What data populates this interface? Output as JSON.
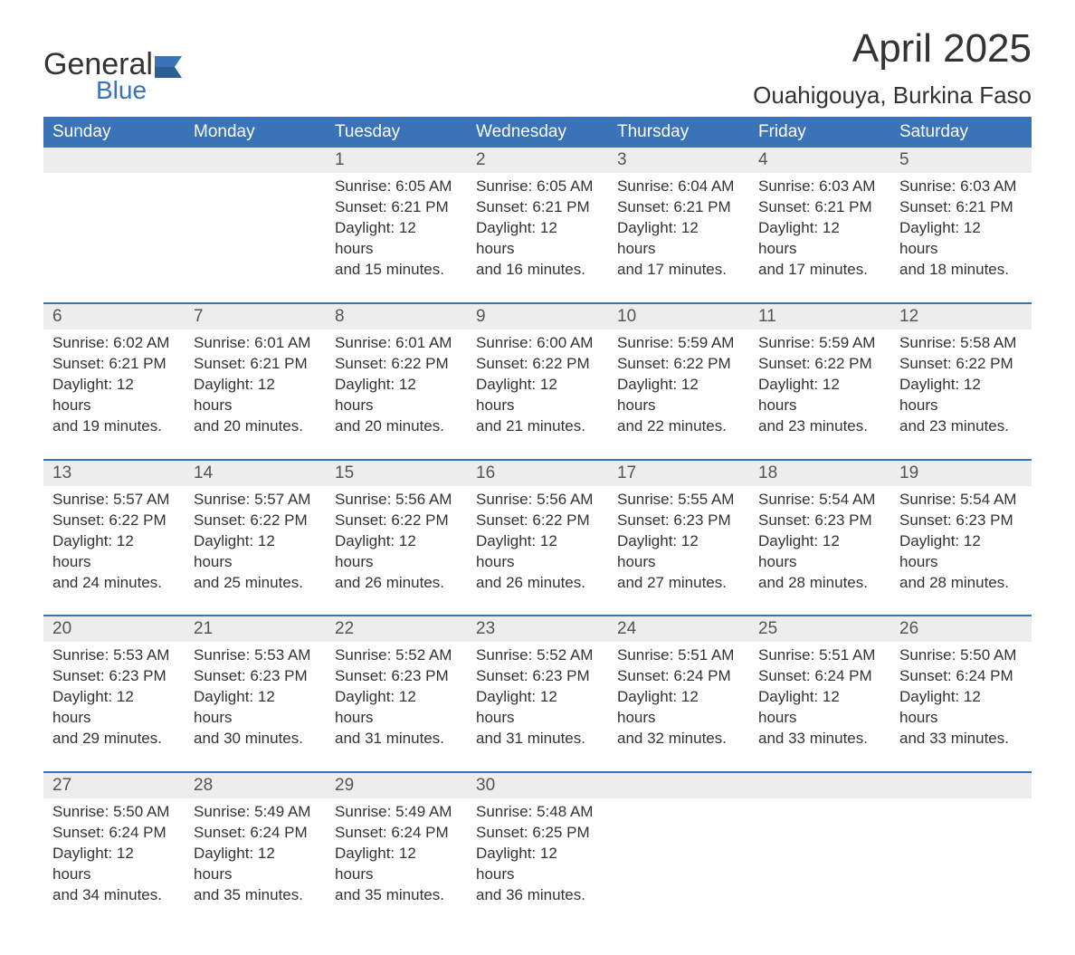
{
  "brand": {
    "text1": "General",
    "text2": "Blue",
    "accent": "#3b73b9"
  },
  "title": "April 2025",
  "location": "Ouahigouya, Burkina Faso",
  "colors": {
    "header_bg": "#3b73b9",
    "header_text": "#ffffff",
    "daynum_bg": "#ededed",
    "row_divider": "#3b73b9",
    "body_text": "#333333",
    "page_bg": "#ffffff"
  },
  "weekdays": [
    "Sunday",
    "Monday",
    "Tuesday",
    "Wednesday",
    "Thursday",
    "Friday",
    "Saturday"
  ],
  "weeks": [
    [
      null,
      null,
      {
        "d": "1",
        "sr": "6:05 AM",
        "ss": "6:21 PM",
        "dlh": "12",
        "dlm": "15"
      },
      {
        "d": "2",
        "sr": "6:05 AM",
        "ss": "6:21 PM",
        "dlh": "12",
        "dlm": "16"
      },
      {
        "d": "3",
        "sr": "6:04 AM",
        "ss": "6:21 PM",
        "dlh": "12",
        "dlm": "17"
      },
      {
        "d": "4",
        "sr": "6:03 AM",
        "ss": "6:21 PM",
        "dlh": "12",
        "dlm": "17"
      },
      {
        "d": "5",
        "sr": "6:03 AM",
        "ss": "6:21 PM",
        "dlh": "12",
        "dlm": "18"
      }
    ],
    [
      {
        "d": "6",
        "sr": "6:02 AM",
        "ss": "6:21 PM",
        "dlh": "12",
        "dlm": "19"
      },
      {
        "d": "7",
        "sr": "6:01 AM",
        "ss": "6:21 PM",
        "dlh": "12",
        "dlm": "20"
      },
      {
        "d": "8",
        "sr": "6:01 AM",
        "ss": "6:22 PM",
        "dlh": "12",
        "dlm": "20"
      },
      {
        "d": "9",
        "sr": "6:00 AM",
        "ss": "6:22 PM",
        "dlh": "12",
        "dlm": "21"
      },
      {
        "d": "10",
        "sr": "5:59 AM",
        "ss": "6:22 PM",
        "dlh": "12",
        "dlm": "22"
      },
      {
        "d": "11",
        "sr": "5:59 AM",
        "ss": "6:22 PM",
        "dlh": "12",
        "dlm": "23"
      },
      {
        "d": "12",
        "sr": "5:58 AM",
        "ss": "6:22 PM",
        "dlh": "12",
        "dlm": "23"
      }
    ],
    [
      {
        "d": "13",
        "sr": "5:57 AM",
        "ss": "6:22 PM",
        "dlh": "12",
        "dlm": "24"
      },
      {
        "d": "14",
        "sr": "5:57 AM",
        "ss": "6:22 PM",
        "dlh": "12",
        "dlm": "25"
      },
      {
        "d": "15",
        "sr": "5:56 AM",
        "ss": "6:22 PM",
        "dlh": "12",
        "dlm": "26"
      },
      {
        "d": "16",
        "sr": "5:56 AM",
        "ss": "6:22 PM",
        "dlh": "12",
        "dlm": "26"
      },
      {
        "d": "17",
        "sr": "5:55 AM",
        "ss": "6:23 PM",
        "dlh": "12",
        "dlm": "27"
      },
      {
        "d": "18",
        "sr": "5:54 AM",
        "ss": "6:23 PM",
        "dlh": "12",
        "dlm": "28"
      },
      {
        "d": "19",
        "sr": "5:54 AM",
        "ss": "6:23 PM",
        "dlh": "12",
        "dlm": "28"
      }
    ],
    [
      {
        "d": "20",
        "sr": "5:53 AM",
        "ss": "6:23 PM",
        "dlh": "12",
        "dlm": "29"
      },
      {
        "d": "21",
        "sr": "5:53 AM",
        "ss": "6:23 PM",
        "dlh": "12",
        "dlm": "30"
      },
      {
        "d": "22",
        "sr": "5:52 AM",
        "ss": "6:23 PM",
        "dlh": "12",
        "dlm": "31"
      },
      {
        "d": "23",
        "sr": "5:52 AM",
        "ss": "6:23 PM",
        "dlh": "12",
        "dlm": "31"
      },
      {
        "d": "24",
        "sr": "5:51 AM",
        "ss": "6:24 PM",
        "dlh": "12",
        "dlm": "32"
      },
      {
        "d": "25",
        "sr": "5:51 AM",
        "ss": "6:24 PM",
        "dlh": "12",
        "dlm": "33"
      },
      {
        "d": "26",
        "sr": "5:50 AM",
        "ss": "6:24 PM",
        "dlh": "12",
        "dlm": "33"
      }
    ],
    [
      {
        "d": "27",
        "sr": "5:50 AM",
        "ss": "6:24 PM",
        "dlh": "12",
        "dlm": "34"
      },
      {
        "d": "28",
        "sr": "5:49 AM",
        "ss": "6:24 PM",
        "dlh": "12",
        "dlm": "35"
      },
      {
        "d": "29",
        "sr": "5:49 AM",
        "ss": "6:24 PM",
        "dlh": "12",
        "dlm": "35"
      },
      {
        "d": "30",
        "sr": "5:48 AM",
        "ss": "6:25 PM",
        "dlh": "12",
        "dlm": "36"
      },
      null,
      null,
      null
    ]
  ],
  "labels": {
    "sunrise_prefix": "Sunrise: ",
    "sunset_prefix": "Sunset: ",
    "daylight_prefix": "Daylight: ",
    "hours_word": " hours",
    "and_word": "and ",
    "minutes_word": " minutes."
  }
}
